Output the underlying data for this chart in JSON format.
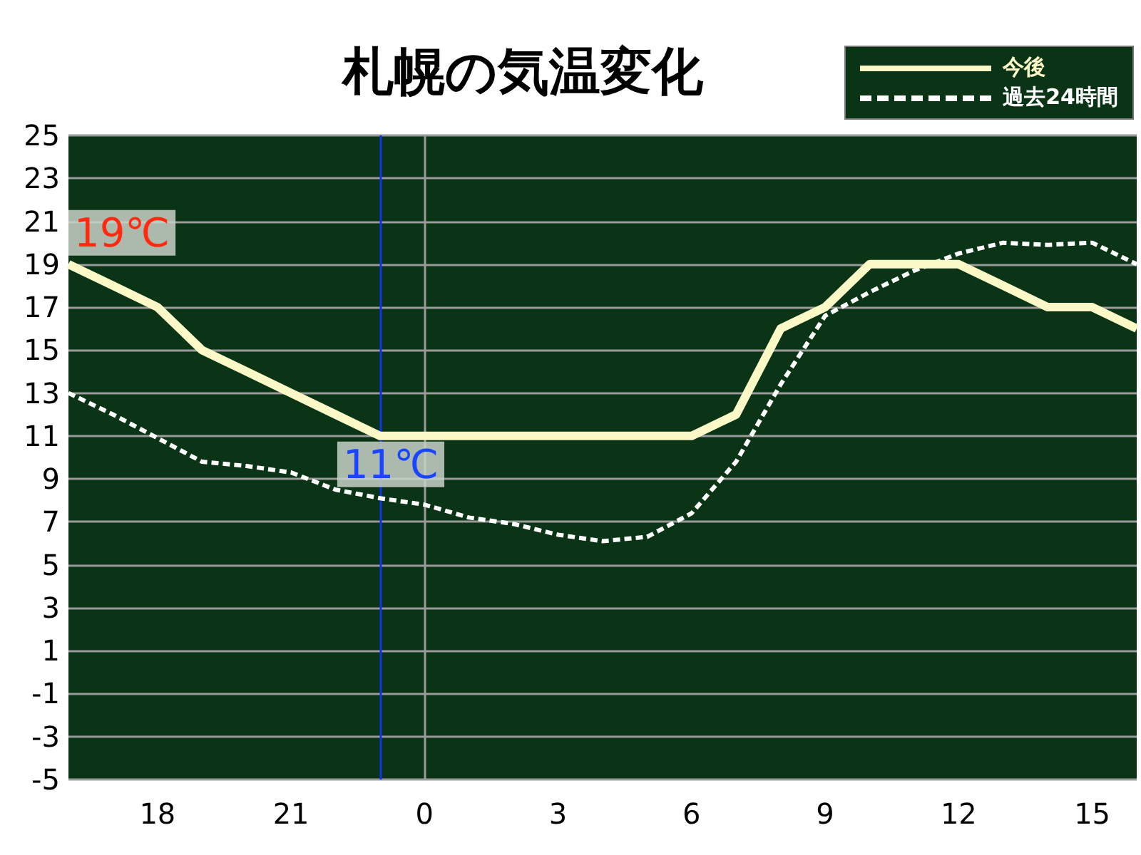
{
  "chart_data": {
    "type": "line",
    "title": "札幌の気温変化",
    "categories": [
      null,
      null,
      "18",
      null,
      null,
      "21",
      null,
      null,
      "0",
      null,
      null,
      "3",
      null,
      null,
      "6",
      null,
      null,
      "9",
      null,
      null,
      "12",
      null,
      null,
      "15",
      null
    ],
    "series": [
      {
        "name": "今後",
        "color": "#fbf8c8",
        "line_style": "solid",
        "values": [
          19,
          18,
          17,
          15,
          14,
          13,
          12,
          11,
          11,
          11,
          11,
          11,
          11,
          11,
          11,
          12,
          16,
          17,
          19,
          19,
          19,
          18,
          17,
          17,
          16
        ]
      },
      {
        "name": "過去24時間",
        "color": "#ffffff",
        "line_style": "dashed",
        "values": [
          13,
          12,
          10.9,
          9.8,
          9.6,
          9.3,
          8.5,
          8.1,
          7.8,
          7.2,
          6.9,
          6.4,
          6.1,
          6.3,
          7.4,
          9.8,
          13.4,
          16.6,
          17.7,
          18.7,
          19.5,
          20,
          19.9,
          20,
          19
        ]
      }
    ],
    "ylim": [
      -5,
      25
    ],
    "yticks": [
      -5,
      -3,
      -1,
      1,
      3,
      5,
      7,
      9,
      11,
      13,
      15,
      17,
      19,
      21,
      23,
      25
    ],
    "ref_lines": [
      {
        "axis": "x",
        "value": "0",
        "color": "#9a9a9a"
      }
    ],
    "annotations": [
      "19℃",
      "11℃"
    ],
    "grid": "y",
    "legend": "top right",
    "marker": "none"
  }
}
